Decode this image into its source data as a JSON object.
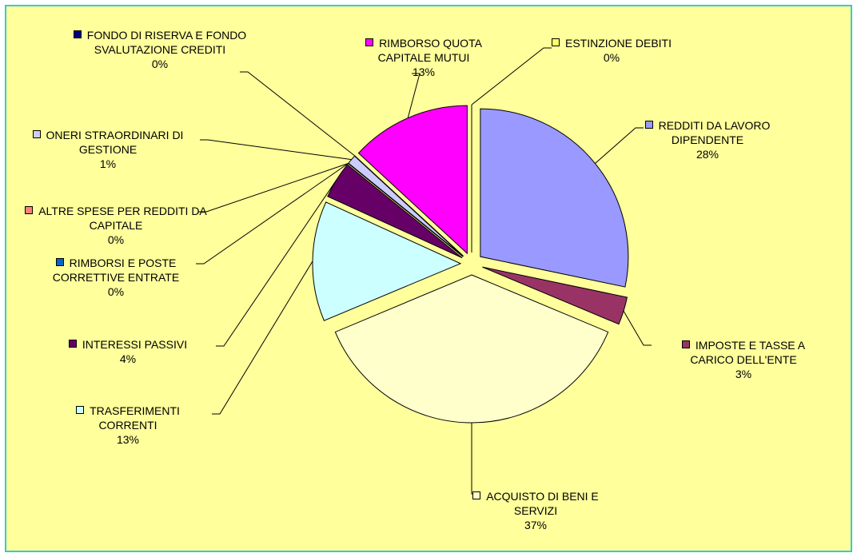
{
  "chart_data": {
    "type": "pie",
    "categories": [
      "ESTINZIONE DEBITI",
      "REDDITI DA LAVORO DIPENDENTE",
      "IMPOSTE E TASSE A CARICO DELL'ENTE",
      "ACQUISTO DI BENI E SERVIZI",
      "TRASFERIMENTI CORRENTI",
      "INTERESSI PASSIVI",
      "RIMBORSI E POSTE CORRETTIVE ENTRATE",
      "ALTRE SPESE PER REDDITI DA CAPITALE",
      "ONERI STRAORDINARI DI GESTIONE",
      "FONDO DI RISERVA E FONDO SVALUTAZIONE CREDITI",
      "RIMBORSO QUOTA CAPITALE MUTUI"
    ],
    "values": [
      0,
      28,
      3,
      37,
      13,
      4,
      0,
      0,
      1,
      0,
      13
    ],
    "value_labels": [
      "0%",
      "28%",
      "3%",
      "37%",
      "13%",
      "4%",
      "0%",
      "0%",
      "1%",
      "0%",
      "13%"
    ],
    "colors": [
      "#ffff66",
      "#9999ff",
      "#993366",
      "#ffffcc",
      "#ccffff",
      "#660066",
      "#0066cc",
      "#ff8080",
      "#ccccff",
      "#000080",
      "#ff00ff"
    ]
  }
}
